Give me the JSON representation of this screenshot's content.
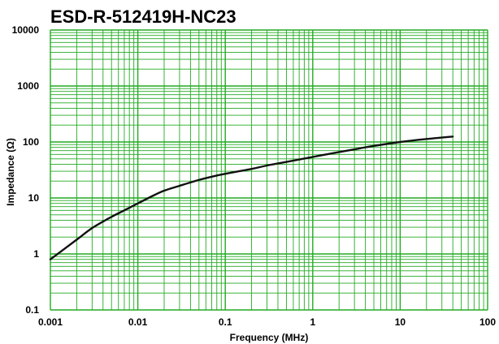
{
  "chart_data": {
    "type": "line",
    "title": "ESD-R-512419H-NC23",
    "xlabel": "Frequency (MHz)",
    "ylabel": "Impedance (Ω)",
    "x_scale": "log",
    "y_scale": "log",
    "xlim": [
      0.001,
      100
    ],
    "ylim": [
      0.1,
      10000
    ],
    "x_ticks": [
      "0.001",
      "0.01",
      "0.1",
      "1",
      "10",
      "100"
    ],
    "y_ticks": [
      "10000",
      "1000",
      "100",
      "10",
      "1",
      "0.1"
    ],
    "grid": true,
    "grid_color": "#22aa22",
    "line_color": "#111111",
    "series": [
      {
        "x": [
          0.001,
          0.002,
          0.003,
          0.005,
          0.007,
          0.01,
          0.015,
          0.02,
          0.03,
          0.05,
          0.07,
          0.1,
          0.2,
          0.3,
          0.5,
          1,
          2,
          3,
          5,
          10,
          20,
          40
        ],
        "y": [
          0.8,
          1.8,
          2.9,
          4.6,
          6.0,
          8.0,
          11.0,
          13.5,
          16.5,
          21.0,
          24.0,
          27.0,
          33.0,
          38.0,
          44.0,
          54.0,
          66.0,
          74.0,
          85.0,
          100.0,
          113.0,
          125.0
        ]
      }
    ]
  }
}
